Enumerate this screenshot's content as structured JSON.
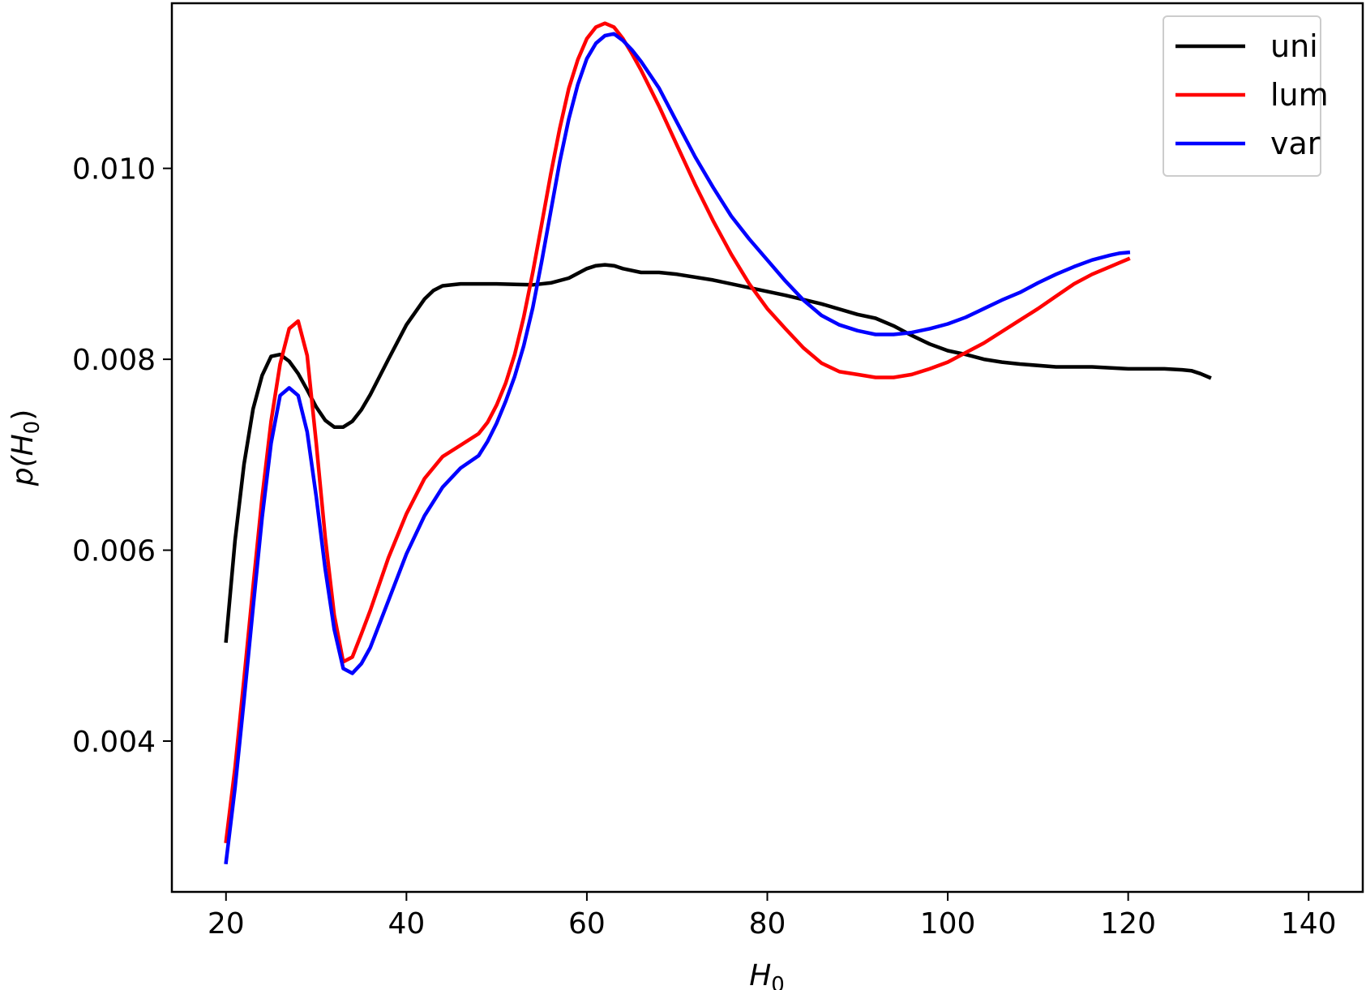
{
  "chart_data": {
    "type": "line",
    "xlabel": "H",
    "xlabel_sub": "0",
    "ylabel": "p(H",
    "ylabel_sub": "0",
    "ylabel_close": ")",
    "xlim": [
      14,
      146
    ],
    "ylim": [
      0.00242,
      0.01173
    ],
    "xticks": [
      20,
      40,
      60,
      80,
      100,
      120,
      140
    ],
    "xtick_labels": [
      "20",
      "40",
      "60",
      "80",
      "100",
      "120",
      "140"
    ],
    "yticks": [
      0.004,
      0.006,
      0.008,
      0.01
    ],
    "ytick_labels": [
      "0.004",
      "0.006",
      "0.008",
      "0.010"
    ],
    "grid": false,
    "legend_position": "top-right",
    "series": [
      {
        "name": "uni",
        "color": "#000000",
        "points": [
          [
            20,
            0.00505
          ],
          [
            21,
            0.0061
          ],
          [
            22,
            0.0069
          ],
          [
            23,
            0.00748
          ],
          [
            24,
            0.00783
          ],
          [
            25,
            0.00803
          ],
          [
            26,
            0.00805
          ],
          [
            27,
            0.00798
          ],
          [
            28,
            0.00785
          ],
          [
            29,
            0.00768
          ],
          [
            30,
            0.0075
          ],
          [
            31,
            0.00736
          ],
          [
            32,
            0.00729
          ],
          [
            33,
            0.00729
          ],
          [
            34,
            0.00735
          ],
          [
            35,
            0.00747
          ],
          [
            36,
            0.00763
          ],
          [
            38,
            0.008
          ],
          [
            40,
            0.00836
          ],
          [
            42,
            0.00863
          ],
          [
            43,
            0.00872
          ],
          [
            44,
            0.00877
          ],
          [
            46,
            0.00879
          ],
          [
            50,
            0.00879
          ],
          [
            54,
            0.00878
          ],
          [
            56,
            0.0088
          ],
          [
            58,
            0.00885
          ],
          [
            60,
            0.00895
          ],
          [
            61,
            0.00898
          ],
          [
            62,
            0.00899
          ],
          [
            63,
            0.00898
          ],
          [
            64,
            0.00895
          ],
          [
            66,
            0.00891
          ],
          [
            68,
            0.00891
          ],
          [
            70,
            0.00889
          ],
          [
            74,
            0.00883
          ],
          [
            78,
            0.00875
          ],
          [
            82,
            0.00867
          ],
          [
            86,
            0.00858
          ],
          [
            90,
            0.00847
          ],
          [
            92,
            0.00843
          ],
          [
            94,
            0.00835
          ],
          [
            96,
            0.00825
          ],
          [
            98,
            0.00816
          ],
          [
            100,
            0.00809
          ],
          [
            102,
            0.00805
          ],
          [
            104,
            0.008
          ],
          [
            106,
            0.00797
          ],
          [
            108,
            0.00795
          ],
          [
            112,
            0.00792
          ],
          [
            116,
            0.00792
          ],
          [
            120,
            0.0079
          ],
          [
            124,
            0.0079
          ],
          [
            126,
            0.00789
          ],
          [
            127,
            0.00788
          ],
          [
            128,
            0.00785
          ],
          [
            129,
            0.00781
          ]
        ]
      },
      {
        "name": "lum",
        "color": "#ff0000",
        "points": [
          [
            20,
            0.00295
          ],
          [
            21,
            0.00372
          ],
          [
            22,
            0.00465
          ],
          [
            23,
            0.00562
          ],
          [
            24,
            0.00655
          ],
          [
            25,
            0.00735
          ],
          [
            26,
            0.00795
          ],
          [
            27,
            0.00832
          ],
          [
            28,
            0.0084
          ],
          [
            29,
            0.00804
          ],
          [
            30,
            0.00712
          ],
          [
            31,
            0.00613
          ],
          [
            32,
            0.00532
          ],
          [
            33,
            0.00483
          ],
          [
            34,
            0.00488
          ],
          [
            35,
            0.00512
          ],
          [
            36,
            0.00537
          ],
          [
            38,
            0.00592
          ],
          [
            40,
            0.00638
          ],
          [
            42,
            0.00675
          ],
          [
            44,
            0.00698
          ],
          [
            46,
            0.0071
          ],
          [
            48,
            0.00722
          ],
          [
            49,
            0.00734
          ],
          [
            50,
            0.00752
          ],
          [
            51,
            0.00775
          ],
          [
            52,
            0.00805
          ],
          [
            53,
            0.00844
          ],
          [
            54,
            0.00891
          ],
          [
            55,
            0.00942
          ],
          [
            56,
            0.00994
          ],
          [
            57,
            0.01042
          ],
          [
            58,
            0.01084
          ],
          [
            59,
            0.01114
          ],
          [
            60,
            0.01136
          ],
          [
            61,
            0.01148
          ],
          [
            62,
            0.01152
          ],
          [
            63,
            0.01148
          ],
          [
            64,
            0.01136
          ],
          [
            65,
            0.0112
          ],
          [
            66,
            0.01103
          ],
          [
            68,
            0.01065
          ],
          [
            70,
            0.01024
          ],
          [
            72,
            0.00983
          ],
          [
            74,
            0.00945
          ],
          [
            76,
            0.0091
          ],
          [
            78,
            0.00879
          ],
          [
            80,
            0.00853
          ],
          [
            82,
            0.00832
          ],
          [
            84,
            0.00812
          ],
          [
            86,
            0.00796
          ],
          [
            88,
            0.00787
          ],
          [
            90,
            0.00784
          ],
          [
            92,
            0.00781
          ],
          [
            94,
            0.00781
          ],
          [
            96,
            0.00784
          ],
          [
            98,
            0.0079
          ],
          [
            100,
            0.00797
          ],
          [
            102,
            0.00807
          ],
          [
            104,
            0.00817
          ],
          [
            106,
            0.00829
          ],
          [
            108,
            0.00841
          ],
          [
            110,
            0.00853
          ],
          [
            112,
            0.00866
          ],
          [
            114,
            0.00879
          ],
          [
            116,
            0.00889
          ],
          [
            118,
            0.00897
          ],
          [
            119,
            0.00901
          ],
          [
            120,
            0.00905
          ]
        ]
      },
      {
        "name": "var",
        "color": "#0000ff",
        "points": [
          [
            20,
            0.00273
          ],
          [
            21,
            0.00351
          ],
          [
            22,
            0.00443
          ],
          [
            23,
            0.0054
          ],
          [
            24,
            0.00634
          ],
          [
            25,
            0.00712
          ],
          [
            26,
            0.00762
          ],
          [
            27,
            0.0077
          ],
          [
            28,
            0.00762
          ],
          [
            29,
            0.00724
          ],
          [
            30,
            0.00656
          ],
          [
            31,
            0.0058
          ],
          [
            32,
            0.00517
          ],
          [
            33,
            0.00476
          ],
          [
            34,
            0.00471
          ],
          [
            35,
            0.00481
          ],
          [
            36,
            0.00498
          ],
          [
            38,
            0.00547
          ],
          [
            40,
            0.00596
          ],
          [
            42,
            0.00636
          ],
          [
            44,
            0.00666
          ],
          [
            46,
            0.00686
          ],
          [
            48,
            0.00699
          ],
          [
            49,
            0.00714
          ],
          [
            50,
            0.00733
          ],
          [
            51,
            0.00756
          ],
          [
            52,
            0.00782
          ],
          [
            53,
            0.00814
          ],
          [
            54,
            0.00854
          ],
          [
            55,
            0.00903
          ],
          [
            56,
            0.00955
          ],
          [
            57,
            0.01007
          ],
          [
            58,
            0.01052
          ],
          [
            59,
            0.01088
          ],
          [
            60,
            0.01115
          ],
          [
            61,
            0.01131
          ],
          [
            62,
            0.01139
          ],
          [
            63,
            0.01141
          ],
          [
            64,
            0.01134
          ],
          [
            65,
            0.01124
          ],
          [
            66,
            0.01112
          ],
          [
            68,
            0.01084
          ],
          [
            70,
            0.01048
          ],
          [
            72,
            0.01012
          ],
          [
            74,
            0.0098
          ],
          [
            76,
            0.0095
          ],
          [
            78,
            0.00926
          ],
          [
            80,
            0.00904
          ],
          [
            82,
            0.00882
          ],
          [
            84,
            0.00862
          ],
          [
            86,
            0.00846
          ],
          [
            88,
            0.00836
          ],
          [
            90,
            0.0083
          ],
          [
            92,
            0.00826
          ],
          [
            94,
            0.00826
          ],
          [
            96,
            0.00828
          ],
          [
            98,
            0.00832
          ],
          [
            100,
            0.00837
          ],
          [
            102,
            0.00844
          ],
          [
            104,
            0.00853
          ],
          [
            106,
            0.00862
          ],
          [
            108,
            0.0087
          ],
          [
            110,
            0.0088
          ],
          [
            112,
            0.00889
          ],
          [
            114,
            0.00897
          ],
          [
            116,
            0.00904
          ],
          [
            118,
            0.00909
          ],
          [
            119,
            0.00911
          ],
          [
            120,
            0.00912
          ]
        ]
      }
    ]
  }
}
